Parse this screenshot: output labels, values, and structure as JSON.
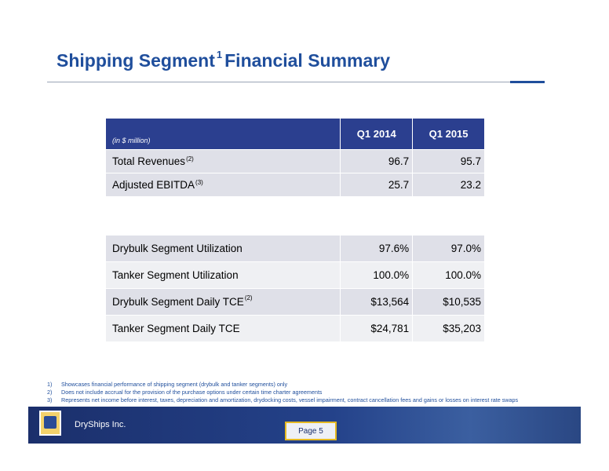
{
  "header": {
    "title": "Shipping Segment",
    "title_sup": "1",
    "title_rest": "Financial Summary"
  },
  "table_financial": {
    "unit_note": "(in $ million)",
    "columns": [
      "Q1 2014",
      "Q1 2015"
    ],
    "rows": [
      {
        "label": "Total Revenues",
        "note": "(2)",
        "values": [
          "96.7",
          "95.7"
        ]
      },
      {
        "label": "Adjusted EBITDA",
        "note": "(3)",
        "values": [
          "25.7",
          "23.2"
        ]
      }
    ]
  },
  "table_operational": {
    "rows": [
      {
        "label": "Drybulk Segment Utilization",
        "values": [
          "97.6%",
          "97.0%"
        ]
      },
      {
        "label": "Tanker Segment Utilization",
        "values": [
          "100.0%",
          "100.0%"
        ]
      },
      {
        "label": "Drybulk Segment Daily TCE",
        "note": "(2)",
        "values": [
          "$13,564",
          "$10,535"
        ]
      },
      {
        "label": "Tanker Segment Daily TCE",
        "values": [
          "$24,781",
          "$35,203"
        ]
      }
    ]
  },
  "footnotes": [
    {
      "marker": "1)",
      "text": "Showcases financial performance of shipping segment (drybulk and tanker segments) only"
    },
    {
      "marker": "2)",
      "text": "Does not include accrual for the provision of the purchase options under certain time charter agreements"
    },
    {
      "marker": "3)",
      "text": "Represents net income before interest, taxes, depreciation and amortization, drydocking costs, vessel impairment, contract cancellation fees and gains or losses on interest rate swaps"
    }
  ],
  "footer": {
    "company": "DryShips Inc.",
    "page": "Page 5"
  }
}
